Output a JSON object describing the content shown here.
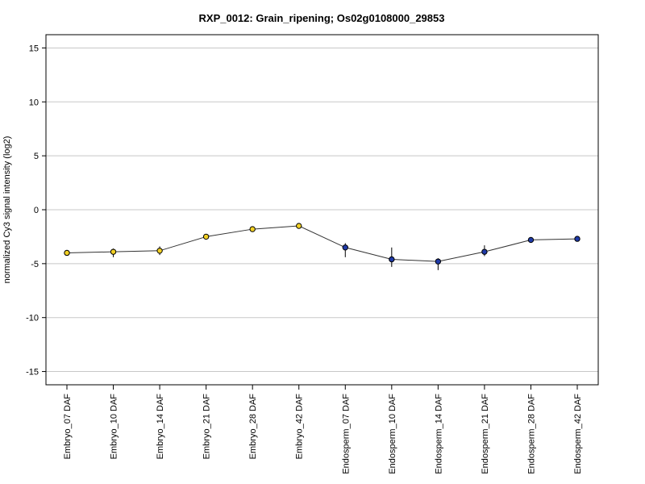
{
  "chart_data": {
    "type": "line",
    "title": "RXP_0012: Grain_ripening; Os02g0108000_29853",
    "xlabel": "",
    "ylabel": "normalized Cy3 signal intensity (log2)",
    "ylim": [
      -16,
      16
    ],
    "yticks": [
      -15,
      -10,
      -5,
      0,
      5,
      10,
      15
    ],
    "ytick_labels": [
      "-15",
      "-10",
      "-5",
      "0",
      "5",
      "10",
      "15"
    ],
    "grid": "horizontal",
    "categories": [
      "Embryo_07 DAF",
      "Embryo_10 DAF",
      "Embryo_14 DAF",
      "Embryo_21 DAF",
      "Embryo_28 DAF",
      "Embryo_42 DAF",
      "Endosperm_07 DAF",
      "Endosperm_10 DAF",
      "Endosperm_14 DAF",
      "Endosperm_21 DAF",
      "Endosperm_28 DAF",
      "Endosperm_42 DAF"
    ],
    "values": [
      -4.0,
      -3.9,
      -3.8,
      -2.5,
      -1.8,
      -1.5,
      -3.5,
      -4.6,
      -4.8,
      -3.9,
      -2.8,
      -2.7
    ],
    "err_low": [
      -4.0,
      -4.4,
      -4.2,
      -2.5,
      -1.8,
      -1.5,
      -4.4,
      -5.3,
      -5.6,
      -4.3,
      -2.8,
      -2.7
    ],
    "err_high": [
      -4.0,
      -3.6,
      -3.4,
      -2.5,
      -1.6,
      -1.3,
      -3.1,
      -3.5,
      -4.5,
      -3.3,
      -2.8,
      -2.6
    ],
    "point_colors": [
      "#f2d024",
      "#f2d024",
      "#f2d024",
      "#f2d024",
      "#f2d024",
      "#f2d024",
      "#1f3aa8",
      "#1f3aa8",
      "#1f3aa8",
      "#1f3aa8",
      "#1f3aa8",
      "#1f3aa8"
    ],
    "line_color": "#333333",
    "grid_color": "#c8c8c8"
  }
}
